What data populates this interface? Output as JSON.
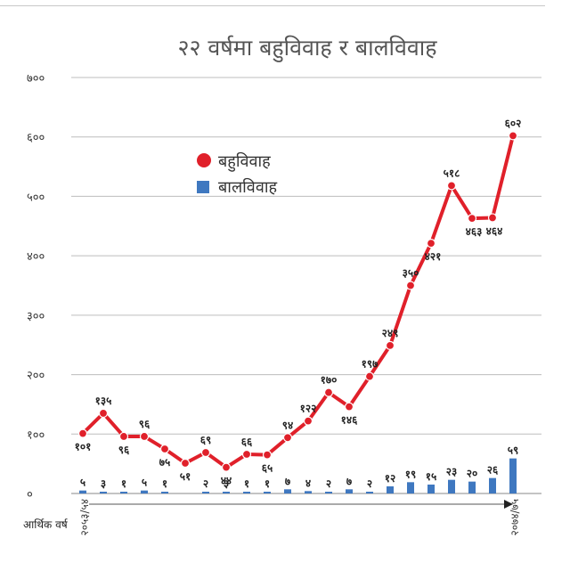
{
  "chart_data": {
    "type": "line",
    "title": "२२ वर्षमा बहुविवाह र बालविवाह",
    "xlabel": "आर्थिक वर्ष",
    "x_first_label": "२०५३/५४",
    "x_last_label": "२०७४/७५",
    "ylim": [
      0,
      700
    ],
    "y_ticks": [
      0,
      100,
      200,
      300,
      400,
      500,
      600,
      700
    ],
    "y_tick_labels": [
      "०",
      "१००",
      "२००",
      "३००",
      "४००",
      "५००",
      "६००",
      "७००"
    ],
    "grid": true,
    "legend_position": "top-left",
    "series": [
      {
        "name": "बहुविवाह",
        "kind": "line",
        "color": "#e0202a",
        "values": [
          101,
          135,
          96,
          96,
          75,
          51,
          69,
          44,
          66,
          65,
          94,
          122,
          170,
          146,
          197,
          249,
          350,
          421,
          518,
          463,
          464,
          602
        ],
        "labels": [
          "१०१",
          "१३५",
          "९६",
          "९६",
          "७५",
          "५१",
          "६९",
          "४४",
          "६६",
          "६५",
          "९४",
          "१२२",
          "१७०",
          "१४६",
          "१९७",
          "२४९",
          "३५०",
          "४२१",
          "५१८",
          "४६३",
          "४६४",
          "६०२"
        ]
      },
      {
        "name": "बालविवाह",
        "kind": "bar",
        "color": "#3f78c0",
        "values": [
          5,
          3,
          1,
          5,
          1,
          0,
          2,
          3,
          1,
          1,
          7,
          4,
          2,
          7,
          2,
          12,
          19,
          15,
          23,
          20,
          26,
          59
        ],
        "labels": [
          "५",
          "३",
          "१",
          "५",
          "१",
          "",
          "२",
          "३",
          "१",
          "१",
          "७",
          "४",
          "२",
          "७",
          "२",
          "१२",
          "१९",
          "१५",
          "२३",
          "२०",
          "२६",
          "५९"
        ]
      }
    ]
  }
}
